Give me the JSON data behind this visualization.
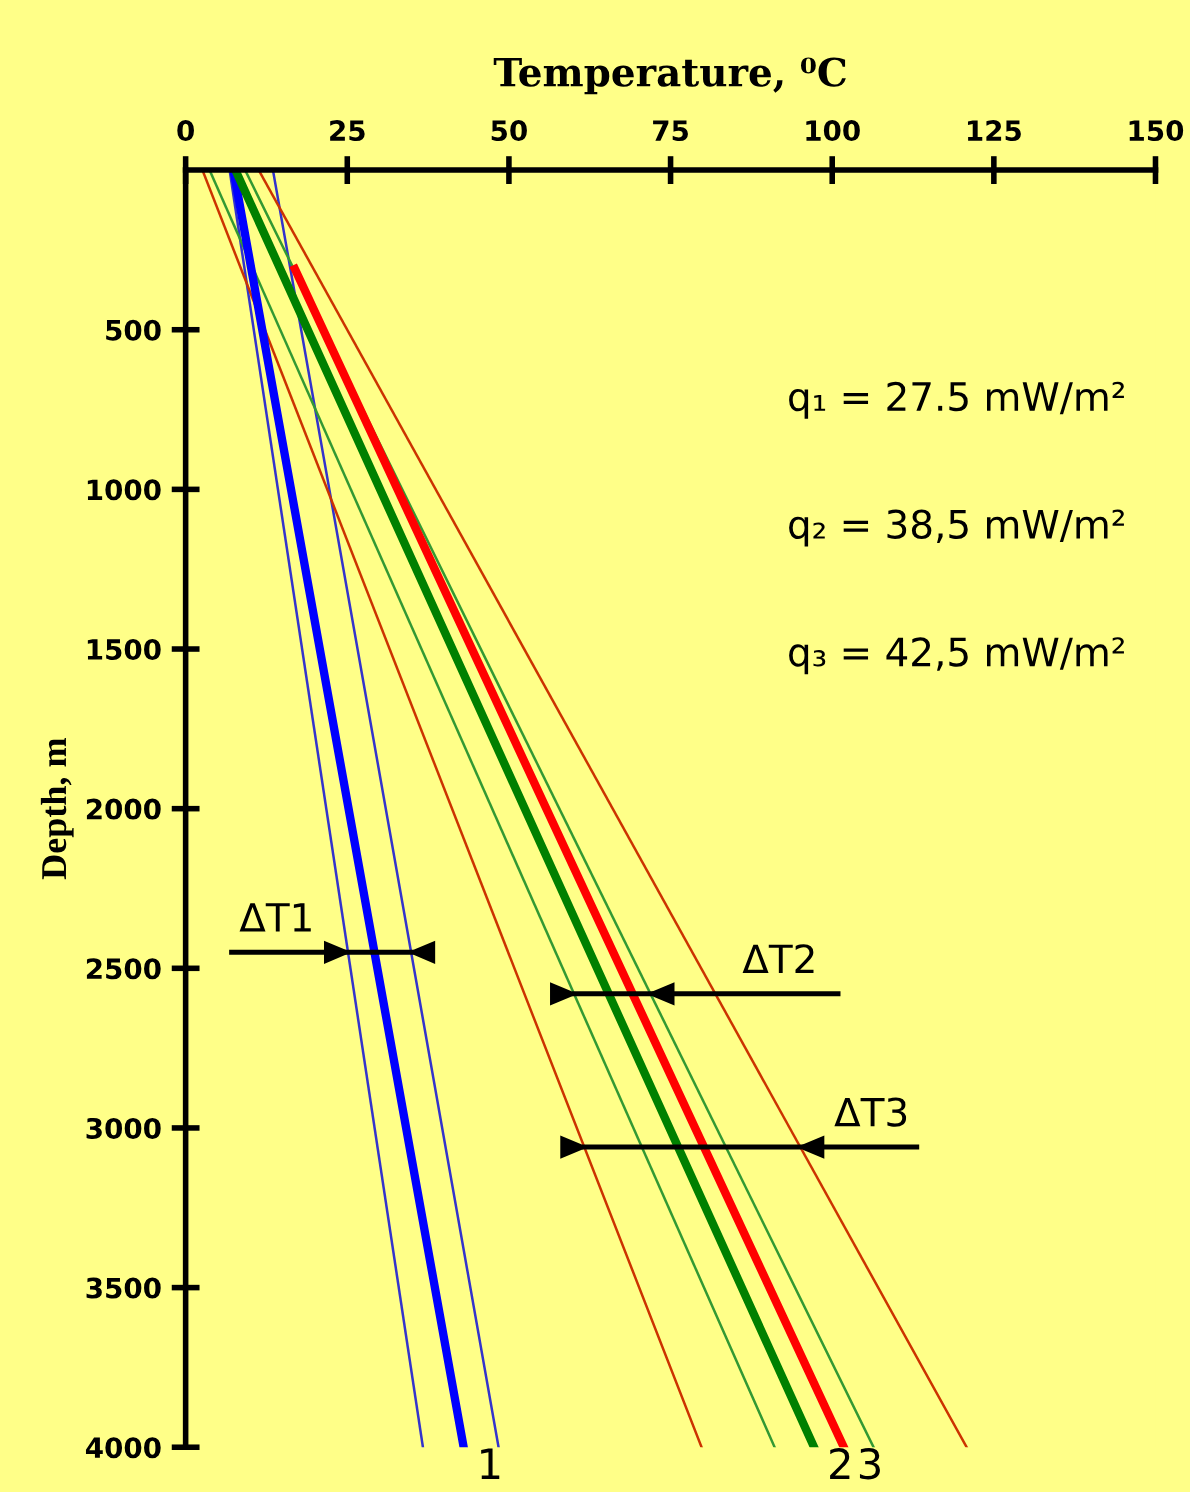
{
  "chart_data": {
    "type": "line",
    "xlabel": "Temperature, ⁰C",
    "ylabel": "Depth, m",
    "xlim": [
      0,
      150
    ],
    "xticks": [
      0,
      25,
      50,
      75,
      100,
      125,
      150
    ],
    "ylim": [
      4000,
      0
    ],
    "yticks": [
      500,
      1000,
      1500,
      2000,
      2500,
      3000,
      3500,
      4000
    ],
    "grid": false,
    "legend": false,
    "marker": "none",
    "line_style": "solid",
    "series": [
      {
        "color": "#3333cc",
        "x": [
          6.8,
          36.7
        ],
        "values": [
          0,
          4000
        ]
      },
      {
        "color": "#3333cc",
        "x": [
          13.5,
          48.4
        ],
        "values": [
          0,
          4000
        ]
      },
      {
        "color": "#339933",
        "x": [
          3.7,
          91.1
        ],
        "values": [
          0,
          4000
        ]
      },
      {
        "color": "#339933",
        "x": [
          9.2,
          106.4
        ],
        "values": [
          0,
          4000
        ]
      },
      {
        "color": "#cc3300",
        "x": [
          2.6,
          79.8
        ],
        "values": [
          0,
          4000
        ]
      },
      {
        "color": "#cc3300",
        "x": [
          11.3,
          120.8
        ],
        "values": [
          0,
          4000
        ]
      },
      {
        "name": "1",
        "color": "#0000ff",
        "x": [
          7.4,
          43
        ],
        "values": [
          0,
          4000
        ]
      },
      {
        "name": "2",
        "color": "#008000",
        "x": [
          7.7,
          97.2
        ],
        "values": [
          0,
          4000
        ]
      },
      {
        "name": "3",
        "color": "#ff0000",
        "x": [
          16.9,
          101.8
        ],
        "values": [
          310,
          4000
        ]
      }
    ],
    "annotations": [
      {
        "text": "ΔT1",
        "x": 25.1,
        "y": 2450
      },
      {
        "text": "ΔT2",
        "x": 71.9,
        "y": 2580
      },
      {
        "text": "ΔT3",
        "x": 95.1,
        "y": 3060
      },
      "q₁ = 27.5 mW/m²",
      "q₂ = 38,5 mW/m²",
      "q₃ = 42,5 mW/m²"
    ]
  }
}
